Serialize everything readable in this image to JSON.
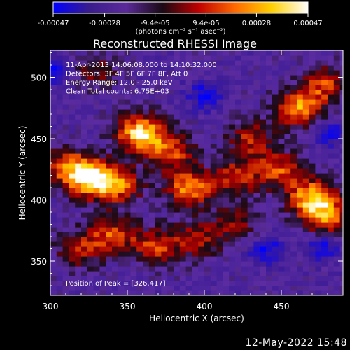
{
  "chart_data": {
    "type": "heatmap",
    "title": "Reconstructed RHESSI Image",
    "xlabel": "Heliocentric X (arcsec)",
    "ylabel": "Heliocentric Y (arcsec)",
    "xlim": [
      300,
      490
    ],
    "ylim": [
      322,
      522
    ],
    "xticks": [
      300,
      350,
      400,
      450
    ],
    "yticks": [
      350,
      400,
      450,
      500
    ],
    "colorbar": {
      "range": [
        -0.00047,
        0.00047
      ],
      "tick_labels": [
        "-0.00047",
        "-0.00028",
        "-9.4e-05",
        "9.4e-05",
        "0.00028",
        "0.00047"
      ],
      "units": "(photons cm⁻² s⁻¹ asec⁻²)",
      "colormap": [
        "#0000ff",
        "#3a1c8c",
        "#5b2a9a",
        "#1a0a14",
        "#c00000",
        "#ff6a00",
        "#ffd000",
        "#ffffff"
      ]
    },
    "annotations": [
      "11-Apr-2013 14:06:08.000 to 14:10:32.000",
      "Detectors: 3F 4F 5F 6F 7F 8F, Att 0",
      "Energy Range: 12.0 - 25.0 keV",
      "Clean     Total counts: 6.75E+03"
    ],
    "peak": {
      "x": 326,
      "y": 417
    },
    "peak_label": "Position of Peak = [326,417]",
    "sources": [
      {
        "x": 326,
        "y": 418,
        "amp": 1.0
      },
      {
        "x": 358,
        "y": 455,
        "amp": 0.95
      },
      {
        "x": 310,
        "y": 428,
        "amp": 0.55
      },
      {
        "x": 345,
        "y": 412,
        "amp": 0.6
      },
      {
        "x": 390,
        "y": 410,
        "amp": 0.75
      },
      {
        "x": 378,
        "y": 440,
        "amp": 0.6
      },
      {
        "x": 420,
        "y": 418,
        "amp": 0.55
      },
      {
        "x": 448,
        "y": 425,
        "amp": 0.6
      },
      {
        "x": 470,
        "y": 402,
        "amp": 0.85
      },
      {
        "x": 480,
        "y": 385,
        "amp": 0.65
      },
      {
        "x": 462,
        "y": 475,
        "amp": 0.75
      },
      {
        "x": 478,
        "y": 495,
        "amp": 0.55
      },
      {
        "x": 430,
        "y": 450,
        "amp": 0.5
      },
      {
        "x": 340,
        "y": 372,
        "amp": 0.6
      },
      {
        "x": 368,
        "y": 362,
        "amp": 0.55
      },
      {
        "x": 395,
        "y": 368,
        "amp": 0.5
      },
      {
        "x": 318,
        "y": 360,
        "amp": 0.45
      },
      {
        "x": 330,
        "y": 505,
        "amp": 0.35
      },
      {
        "x": 420,
        "y": 380,
        "amp": 0.4
      }
    ],
    "deep_minima": [
      {
        "x": 400,
        "y": 485
      },
      {
        "x": 478,
        "y": 362
      },
      {
        "x": 440,
        "y": 360
      },
      {
        "x": 300,
        "y": 505
      },
      {
        "x": 482,
        "y": 455
      }
    ]
  },
  "footer": {
    "timestamp": "12-May-2022 15:48"
  }
}
